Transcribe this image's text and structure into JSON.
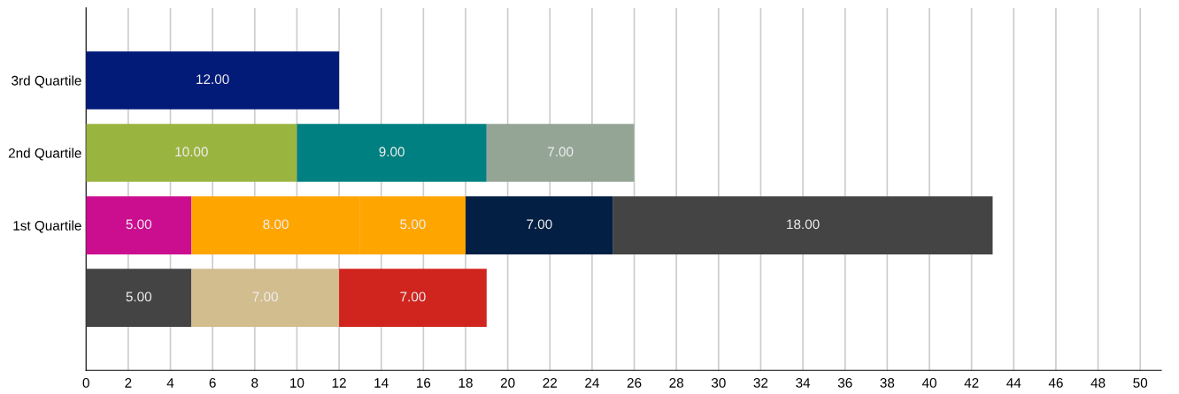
{
  "chart_data": {
    "type": "bar",
    "orientation": "horizontal",
    "stacked": true,
    "categories": [
      "3rd Quartile",
      "2nd Quartile",
      "1st Quartile",
      null
    ],
    "series": [
      {
        "values": [
          12,
          10,
          5,
          5
        ],
        "colors": [
          "#021b79",
          "#9ab440",
          "#cb0e8f",
          "#444444"
        ],
        "value_labels": [
          "12.00",
          "10.00",
          "5.00",
          "5.00"
        ]
      },
      {
        "values": [
          null,
          9,
          8,
          7
        ],
        "colors": [
          null,
          "#008080",
          "#ffa500",
          "#d2bd8f"
        ],
        "value_labels": [
          null,
          "9.00",
          "8.00",
          "7.00"
        ]
      },
      {
        "values": [
          null,
          7,
          5,
          7
        ],
        "colors": [
          null,
          "#94a596",
          "#ffa500",
          "#d0241f"
        ],
        "value_labels": [
          null,
          "7.00",
          "5.00",
          "7.00"
        ]
      },
      {
        "values": [
          null,
          null,
          7,
          null
        ],
        "colors": [
          null,
          null,
          "#031f43",
          null
        ],
        "value_labels": [
          null,
          null,
          "7.00",
          null
        ]
      },
      {
        "values": [
          null,
          null,
          18,
          null
        ],
        "colors": [
          null,
          null,
          "#444444",
          null
        ],
        "value_labels": [
          null,
          null,
          "18.00",
          null
        ]
      }
    ],
    "xlim": [
      0,
      51
    ],
    "xticks": [
      0,
      2,
      4,
      6,
      8,
      10,
      12,
      14,
      16,
      18,
      20,
      22,
      24,
      26,
      28,
      30,
      32,
      34,
      36,
      38,
      40,
      42,
      44,
      46,
      48,
      50
    ],
    "grid": "x"
  }
}
